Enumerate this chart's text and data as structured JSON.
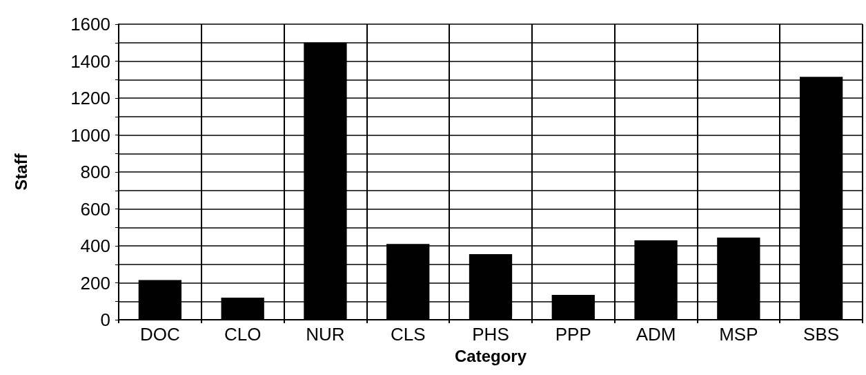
{
  "chart_data": {
    "type": "bar",
    "xlabel": "Category",
    "ylabel": "Staff",
    "categories": [
      "DOC",
      "CLO",
      "NUR",
      "CLS",
      "PHS",
      "PPP",
      "ADM",
      "MSP",
      "SBS"
    ],
    "values": [
      215,
      120,
      1500,
      410,
      355,
      135,
      430,
      445,
      1315
    ],
    "color": "#000000",
    "ylim": [
      0,
      1600
    ],
    "yticks": [
      0,
      {
        "value": 100,
        "label": null
      },
      200,
      {
        "value": 300,
        "label": null
      },
      400,
      {
        "value": 500,
        "label": null
      },
      600,
      {
        "value": 700,
        "label": null
      },
      800,
      {
        "value": 900,
        "label": null
      },
      1000,
      {
        "value": 1100,
        "label": null
      },
      1200,
      {
        "value": 1300,
        "label": null
      },
      1400,
      {
        "value": 1500,
        "label": null
      },
      1600
    ],
    "grid": true
  }
}
